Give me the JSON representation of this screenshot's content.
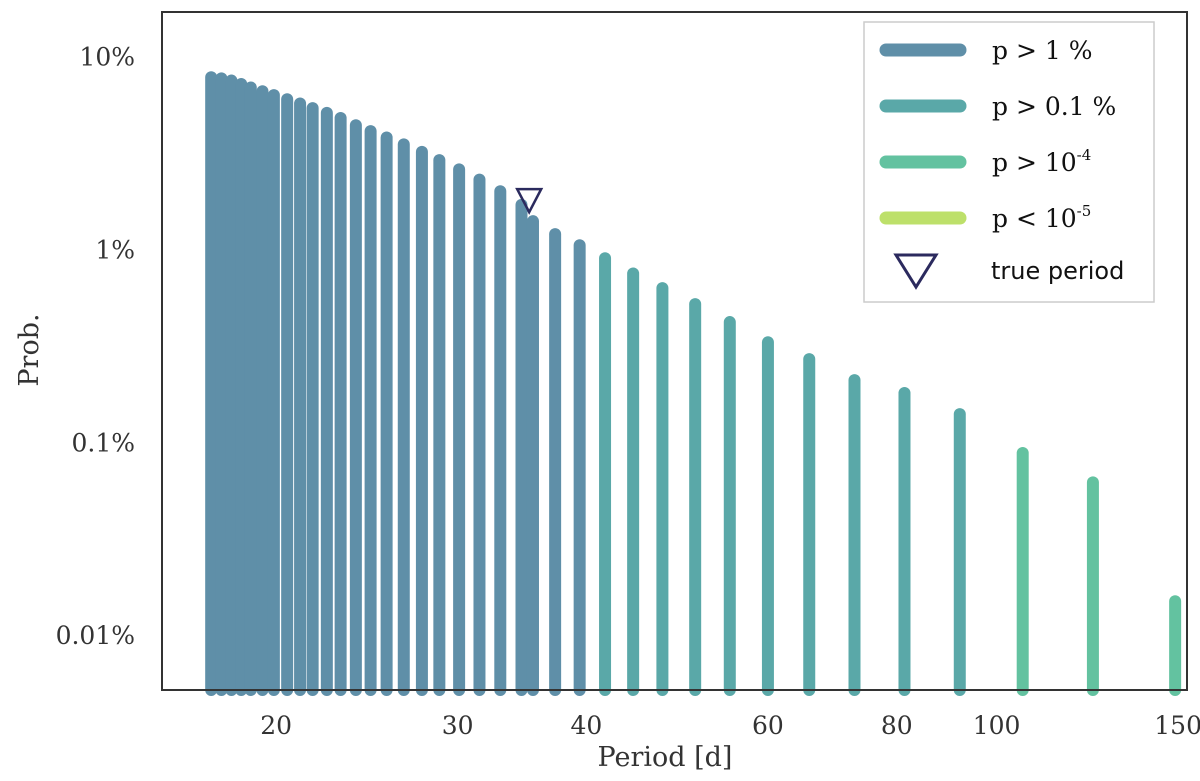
{
  "chart_data": {
    "type": "bar",
    "xlabel": "Period [d]",
    "ylabel": "Prob.",
    "xscale": "log",
    "yscale": "log",
    "x_ticks": [
      20,
      30,
      40,
      60,
      80,
      100,
      150
    ],
    "x_tick_labels": [
      "20",
      "30",
      "40",
      "60",
      "80",
      "100",
      "150"
    ],
    "y_ticks": [
      0.0001,
      0.001,
      0.01,
      0.1
    ],
    "y_tick_labels": [
      "0.01%",
      "0.1%",
      "1%",
      "10%"
    ],
    "xlim": [
      15.5,
      153
    ],
    "ylim": [
      5.2e-05,
      0.17
    ],
    "grid": false,
    "legend_position": "top-right",
    "legend": [
      {
        "id": "p1",
        "main": "p > 1 %",
        "sup": "",
        "color": "#5f8fa8"
      },
      {
        "id": "p01",
        "main": "p > 0.1 %",
        "sup": "",
        "color": "#5aa8a8"
      },
      {
        "id": "p4",
        "main": "p > 10",
        "sup": "-4",
        "color": "#63c2a0"
      },
      {
        "id": "p5",
        "main": "p < 10",
        "sup": "-5",
        "color": "#bde06a"
      }
    ],
    "marker_legend_label": "true period",
    "marker_color": "#2b2a5e",
    "true_period": {
      "x": 35.2,
      "y": 0.018
    },
    "bars": [
      {
        "x": 17.3,
        "y": 0.078
      },
      {
        "x": 17.7,
        "y": 0.077
      },
      {
        "x": 18.1,
        "y": 0.075
      },
      {
        "x": 18.5,
        "y": 0.072
      },
      {
        "x": 18.9,
        "y": 0.069
      },
      {
        "x": 19.4,
        "y": 0.066
      },
      {
        "x": 19.9,
        "y": 0.063
      },
      {
        "x": 20.5,
        "y": 0.06
      },
      {
        "x": 21.1,
        "y": 0.057
      },
      {
        "x": 21.7,
        "y": 0.054
      },
      {
        "x": 22.4,
        "y": 0.051
      },
      {
        "x": 23.1,
        "y": 0.048
      },
      {
        "x": 23.9,
        "y": 0.044
      },
      {
        "x": 24.7,
        "y": 0.041
      },
      {
        "x": 25.6,
        "y": 0.038
      },
      {
        "x": 26.6,
        "y": 0.035
      },
      {
        "x": 27.7,
        "y": 0.032
      },
      {
        "x": 28.8,
        "y": 0.029
      },
      {
        "x": 30.1,
        "y": 0.026
      },
      {
        "x": 31.5,
        "y": 0.023
      },
      {
        "x": 33.0,
        "y": 0.02
      },
      {
        "x": 34.6,
        "y": 0.017
      },
      {
        "x": 35.5,
        "y": 0.014
      },
      {
        "x": 37.3,
        "y": 0.012
      },
      {
        "x": 39.4,
        "y": 0.0105
      },
      {
        "x": 41.7,
        "y": 0.009
      },
      {
        "x": 44.4,
        "y": 0.0075
      },
      {
        "x": 47.4,
        "y": 0.0063
      },
      {
        "x": 51.0,
        "y": 0.0052
      },
      {
        "x": 55.1,
        "y": 0.0042
      },
      {
        "x": 60.0,
        "y": 0.0033
      },
      {
        "x": 65.8,
        "y": 0.0027
      },
      {
        "x": 72.8,
        "y": 0.0021
      },
      {
        "x": 81.4,
        "y": 0.0018
      },
      {
        "x": 92.1,
        "y": 0.0014
      },
      {
        "x": 106.0,
        "y": 0.00088
      },
      {
        "x": 124.0,
        "y": 0.00062
      },
      {
        "x": 149.0,
        "y": 0.00015
      }
    ]
  }
}
